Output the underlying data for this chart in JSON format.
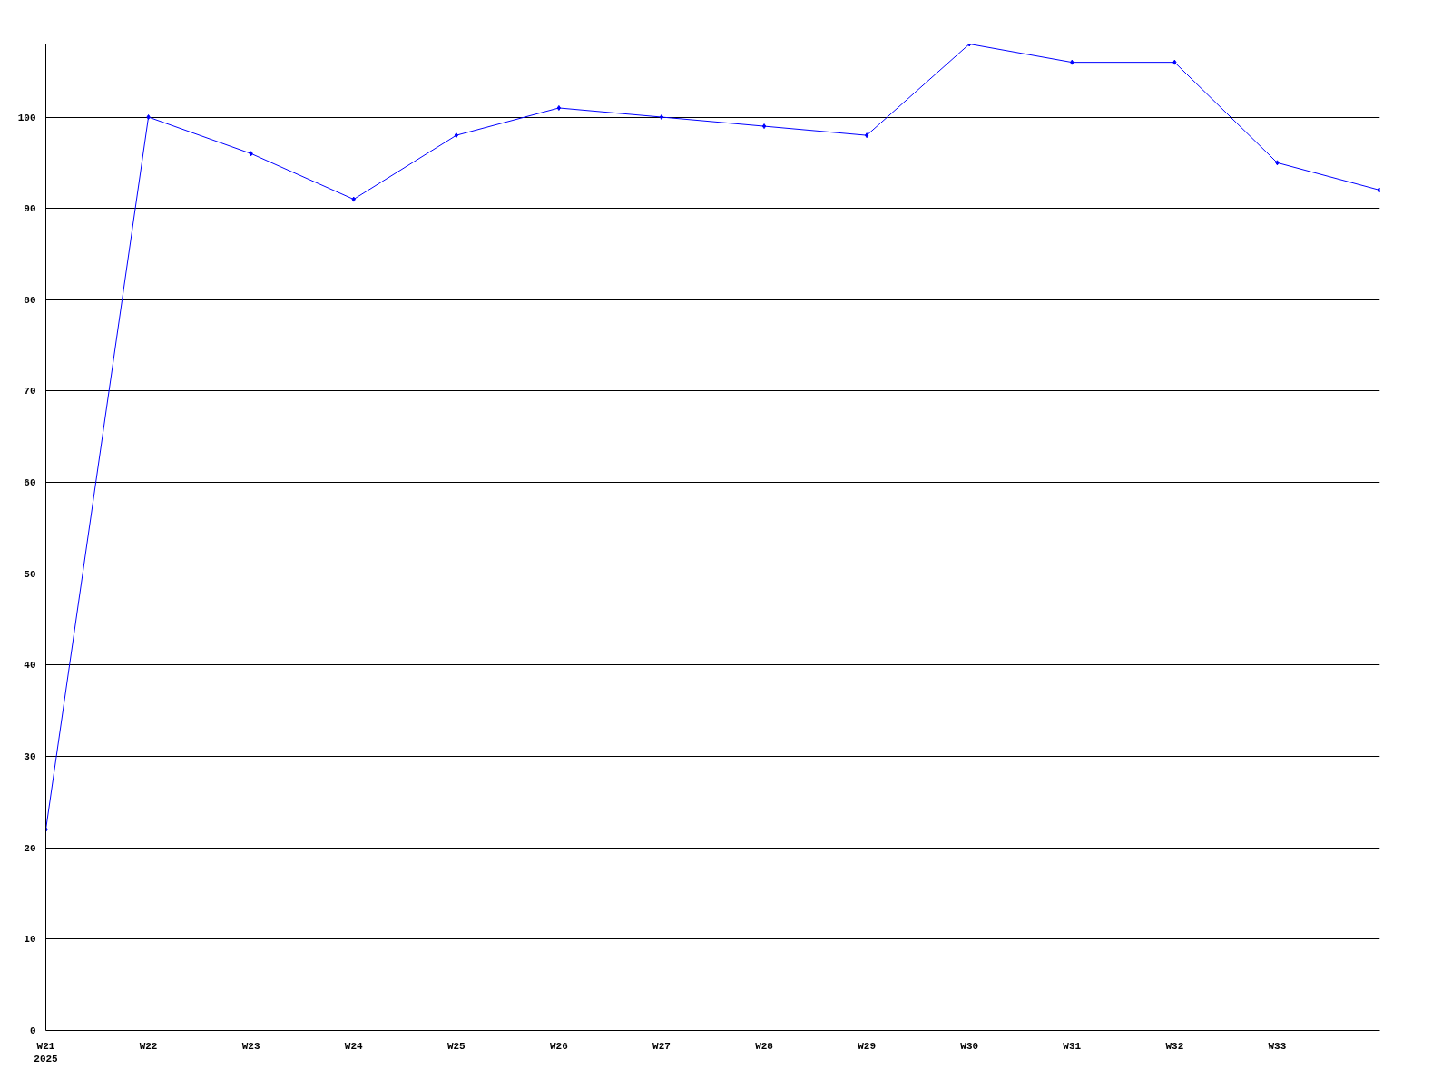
{
  "chart_data": {
    "type": "line",
    "categories": [
      "W21\n2025",
      "W22",
      "W23",
      "W24",
      "W25",
      "W26",
      "W27",
      "W28",
      "W29",
      "W30",
      "W31",
      "W32",
      "W33",
      null
    ],
    "series": [
      {
        "color": "#0000ff",
        "values": [
          22,
          100,
          96,
          91,
          98,
          101,
          100,
          99,
          98,
          108,
          106,
          106,
          95,
          92
        ]
      }
    ],
    "ylim": [
      0,
      108
    ],
    "yticks": [
      0,
      10,
      20,
      30,
      40,
      50,
      60,
      70,
      80,
      90,
      100
    ],
    "grid": "y",
    "marker": "diamond",
    "line_style": "solid"
  }
}
